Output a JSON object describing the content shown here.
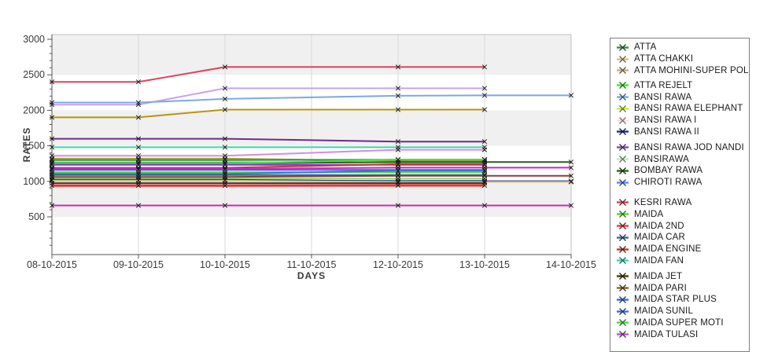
{
  "page": {
    "background": "#ffffff"
  },
  "chart_data": {
    "type": "line",
    "title": "",
    "xlabel": "DAYS",
    "ylabel": "RATES",
    "x_categories": [
      "08-10-2015",
      "09-10-2015",
      "10-10-2015",
      "11-10-2015",
      "12-10-2015",
      "13-10-2015",
      "14-10-2015"
    ],
    "ylim": [
      0,
      3000
    ],
    "ytick_labels": [
      "500",
      "1000",
      "1500",
      "2000",
      "2500",
      "3000"
    ],
    "ytick_step": 500,
    "ytick_minor_step": 100,
    "grid": "vertical date gridlines; alternating 500-unit horizontal bands",
    "band_colors": [
      "#ffffff",
      "#f0f0f0"
    ],
    "legend_position": "right",
    "marker": "black x at each data point",
    "series": [
      {
        "name": "KESRI RAWA",
        "color": "#d94460",
        "width": 2,
        "x_idx": [
          0,
          1,
          2,
          4,
          5
        ],
        "values": [
          2400,
          2400,
          2610,
          2610,
          2610
        ]
      },
      {
        "name": "BANSI RAWA I",
        "color": "#c9a3e8",
        "width": 2,
        "x_idx": [
          0,
          1,
          2,
          4,
          5
        ],
        "values": [
          2080,
          2080,
          2310,
          2310,
          2310
        ]
      },
      {
        "name": "BANSI RAWA",
        "color": "#7da7e8",
        "width": 2,
        "x_idx": [
          0,
          1,
          2,
          4,
          5,
          6
        ],
        "values": [
          2110,
          2110,
          2160,
          2205,
          2210,
          2210
        ]
      },
      {
        "name": "ATTA MOHINI-SUPER POLO",
        "color": "#b8960c",
        "width": 2,
        "x_idx": [
          0,
          1,
          2,
          4,
          5
        ],
        "values": [
          1900,
          1900,
          2010,
          2010,
          2010
        ]
      },
      {
        "name": "BANSI RAWA JOD NANDI",
        "color": "#6b2d8b",
        "width": 2,
        "x_idx": [
          0,
          1,
          2,
          4,
          5
        ],
        "values": [
          1600,
          1600,
          1600,
          1560,
          1560
        ]
      },
      {
        "name": "MAIDA FAN",
        "color": "#38d8a8",
        "width": 2,
        "x_idx": [
          0,
          1,
          2,
          4,
          5
        ],
        "values": [
          1480,
          1480,
          1480,
          1480,
          1480
        ]
      },
      {
        "name": "MAIDA TULASI",
        "color": "#d98ae0",
        "width": 2,
        "x_idx": [
          0,
          1,
          2,
          4,
          5
        ],
        "values": [
          1360,
          1360,
          1360,
          1445,
          1445
        ]
      },
      {
        "name": "BANSI RAWA ELEPHANT",
        "color": "#9ba82e",
        "width": 2,
        "x_idx": [
          0,
          1,
          2,
          4,
          5
        ],
        "values": [
          1320,
          1320,
          1320,
          1290,
          1290
        ]
      },
      {
        "name": "ATTA",
        "color": "#3c8c50",
        "width": 2,
        "x_idx": [
          0,
          1,
          2,
          4,
          5
        ],
        "values": [
          1300,
          1300,
          1300,
          1305,
          1305
        ]
      },
      {
        "name": "ATTA REJELT",
        "color": "#4cc93c",
        "width": 2,
        "x_idx": [
          0,
          1,
          2,
          4,
          5
        ],
        "values": [
          1268,
          1268,
          1268,
          1268,
          1268
        ]
      },
      {
        "name": "BOMBAY RAWA",
        "color": "#2c5c1c",
        "width": 2,
        "x_idx": [
          0,
          1,
          2,
          4,
          5,
          6
        ],
        "values": [
          1252,
          1252,
          1252,
          1272,
          1272,
          1272
        ]
      },
      {
        "name": "MAIDA SUPER MOTI",
        "color": "#48e048",
        "width": 2,
        "x_idx": [
          0,
          1,
          2,
          4,
          5
        ],
        "values": [
          1250,
          1250,
          1250,
          1308,
          1308
        ]
      },
      {
        "name": "",
        "color": "#8a2be2",
        "width": 2,
        "x_idx": [
          0,
          1,
          2,
          4,
          5
        ],
        "values": [
          1232,
          1232,
          1232,
          1232,
          1232
        ]
      },
      {
        "name": "MAIDA ENGINE",
        "color": "#c03830",
        "width": 2,
        "x_idx": [
          0,
          1,
          2,
          4,
          5
        ],
        "values": [
          1190,
          1190,
          1190,
          1242,
          1242
        ]
      },
      {
        "name": "",
        "color": "#c727c7",
        "width": 2,
        "x_idx": [
          0,
          1,
          2,
          4,
          5,
          6
        ],
        "values": [
          1175,
          1175,
          1175,
          1192,
          1192,
          1192
        ]
      },
      {
        "name": "MAIDA STAR PLUS",
        "color": "#3c64d8",
        "width": 2,
        "x_idx": [
          0,
          1,
          2,
          4,
          5
        ],
        "values": [
          1160,
          1160,
          1160,
          1160,
          1160
        ]
      },
      {
        "name": "MAIDA",
        "color": "#50d830",
        "width": 2,
        "x_idx": [
          0,
          1,
          2,
          4,
          5
        ],
        "values": [
          1127,
          1127,
          1127,
          1127,
          1127
        ]
      },
      {
        "name": "MAIDA SUNIL",
        "color": "#3870e0",
        "width": 2,
        "x_idx": [
          0,
          1,
          2,
          4,
          5
        ],
        "values": [
          1105,
          1105,
          1105,
          1150,
          1150
        ]
      },
      {
        "name": "MAIDA CAR",
        "color": "#38688c",
        "width": 2,
        "x_idx": [
          0,
          1,
          2,
          4,
          5
        ],
        "values": [
          1090,
          1090,
          1090,
          1090,
          1090
        ]
      },
      {
        "name": "MAIDA PARI",
        "color": "#8c3c34",
        "width": 2,
        "x_idx": [
          0,
          1,
          2,
          4,
          5,
          6
        ],
        "values": [
          1062,
          1062,
          1062,
          1078,
          1078,
          1078
        ]
      },
      {
        "name": "BANSIRAWA",
        "color": "#86d96e",
        "width": 2,
        "x_idx": [
          0,
          1,
          2,
          4,
          5
        ],
        "values": [
          1038,
          1038,
          1038,
          1038,
          1038
        ]
      },
      {
        "name": "CHIROTI RAWA",
        "color": "#5c8ce8",
        "width": 2,
        "x_idx": [
          0,
          1,
          2,
          4,
          5
        ],
        "values": [
          1008,
          1008,
          1008,
          1008,
          1008
        ]
      },
      {
        "name": "BANSI RAWA II",
        "color": "#232c8c",
        "width": 2,
        "x_idx": [
          0,
          1,
          2,
          4,
          5,
          6
        ],
        "values": [
          1022,
          1022,
          1022,
          1002,
          1002,
          1002
        ]
      },
      {
        "name": "ATTA CHAKKI",
        "color": "#d2c08a",
        "width": 2,
        "x_idx": [
          0,
          1,
          2,
          4,
          5,
          6
        ],
        "values": [
          1010,
          1010,
          1010,
          992,
          992,
          992
        ]
      },
      {
        "name": "MAIDA JET",
        "color": "#3c3c14",
        "width": 2,
        "x_idx": [
          0,
          1,
          2,
          4,
          5
        ],
        "values": [
          975,
          975,
          975,
          975,
          975
        ]
      },
      {
        "name": "MAIDA 2ND",
        "color": "#e8303c",
        "width": 3,
        "x_idx": [
          0,
          1,
          2,
          4,
          5
        ],
        "values": [
          940,
          940,
          940,
          942,
          942
        ]
      },
      {
        "name": "",
        "color": "#cc2cac",
        "width": 2,
        "x_idx": [
          0,
          1,
          2,
          4,
          5,
          6
        ],
        "values": [
          660,
          660,
          660,
          660,
          660,
          660
        ]
      }
    ]
  },
  "legend": {
    "items": [
      {
        "label": "ATTA",
        "color": "#3c8c50"
      },
      {
        "label": "ATTA CHAKKI",
        "color": "#d2c08a"
      },
      {
        "label": "ATTA MOHINI-SUPER POLO",
        "color": "#beb27e"
      },
      {
        "label": "ATTA REJELT",
        "color": "#44e82c",
        "gap": 4
      },
      {
        "label": "BANSI RAWA",
        "color": "#7da7e8"
      },
      {
        "label": "BANSI RAWA ELEPHANT",
        "color": "#cce83c"
      },
      {
        "label": "BANSI RAWA I",
        "color": "#f2e0dc"
      },
      {
        "label": "BANSI RAWA II",
        "color": "#232c8c"
      },
      {
        "label": "BANSI RAWA JOD NANDI",
        "color": "#7c52a8",
        "gap": 5
      },
      {
        "label": "BANSIRAWA",
        "color": "#c8e8c0"
      },
      {
        "label": "BOMBAY RAWA",
        "color": "#2c5c1c"
      },
      {
        "label": "CHIROTI RAWA",
        "color": "#5c8ce8"
      },
      {
        "label": "KESRI RAWA",
        "color": "#d94460",
        "gap": 11
      },
      {
        "label": "MAIDA",
        "color": "#50d830"
      },
      {
        "label": "MAIDA 2ND",
        "color": "#e04048"
      },
      {
        "label": "MAIDA CAR",
        "color": "#3c6c8c"
      },
      {
        "label": "MAIDA ENGINE",
        "color": "#c03830"
      },
      {
        "label": "MAIDA FAN",
        "color": "#38d8b8"
      },
      {
        "label": "MAIDA JET",
        "color": "#3c3c14",
        "gap": 5
      },
      {
        "label": "MAIDA PARI",
        "color": "#8c5c34"
      },
      {
        "label": "MAIDA STAR PLUS",
        "color": "#3c64d8"
      },
      {
        "label": "MAIDA SUNIL",
        "color": "#3870e0"
      },
      {
        "label": "MAIDA SUPER MOTI",
        "color": "#48e048"
      },
      {
        "label": "MAIDA TULASI",
        "color": "#c050d8"
      }
    ]
  }
}
